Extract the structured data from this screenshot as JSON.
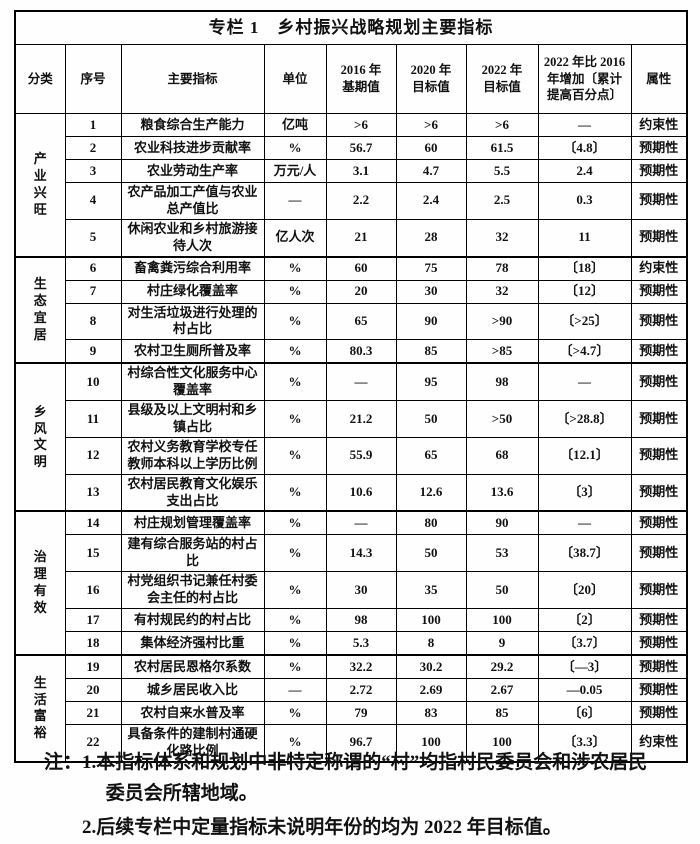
{
  "table": {
    "title": "专栏 1　乡村振兴战略规划主要指标",
    "header": {
      "category": "分类",
      "no": "序号",
      "indicator": "主要指标",
      "unit": "单位",
      "y2016": "2016 年\n基期值",
      "y2020": "2020 年\n目标值",
      "y2022": "2022 年\n目标值",
      "increase": "2022 年比 2016 年增加〔累计提高百分点〕",
      "attr": "属性"
    },
    "groups": [
      {
        "category": "产业兴旺",
        "rows": [
          {
            "no": "1",
            "indicator": "粮食综合生产能力",
            "unit": "亿吨",
            "v2016": ">6",
            "v2020": ">6",
            "v2022": ">6",
            "increase": "—",
            "attr": "约束性"
          },
          {
            "no": "2",
            "indicator": "农业科技进步贡献率",
            "unit": "%",
            "v2016": "56.7",
            "v2020": "60",
            "v2022": "61.5",
            "increase": "〔4.8〕",
            "attr": "预期性"
          },
          {
            "no": "3",
            "indicator": "农业劳动生产率",
            "unit": "万元/人",
            "v2016": "3.1",
            "v2020": "4.7",
            "v2022": "5.5",
            "increase": "2.4",
            "attr": "预期性"
          },
          {
            "no": "4",
            "indicator": "农产品加工产值与农业总产值比",
            "unit": "—",
            "v2016": "2.2",
            "v2020": "2.4",
            "v2022": "2.5",
            "increase": "0.3",
            "attr": "预期性"
          },
          {
            "no": "5",
            "indicator": "休闲农业和乡村旅游接待人次",
            "unit": "亿人次",
            "v2016": "21",
            "v2020": "28",
            "v2022": "32",
            "increase": "11",
            "attr": "预期性"
          }
        ]
      },
      {
        "category": "生态宜居",
        "rows": [
          {
            "no": "6",
            "indicator": "畜禽粪污综合利用率",
            "unit": "%",
            "v2016": "60",
            "v2020": "75",
            "v2022": "78",
            "increase": "〔18〕",
            "attr": "约束性"
          },
          {
            "no": "7",
            "indicator": "村庄绿化覆盖率",
            "unit": "%",
            "v2016": "20",
            "v2020": "30",
            "v2022": "32",
            "increase": "〔12〕",
            "attr": "预期性"
          },
          {
            "no": "8",
            "indicator": "对生活垃圾进行处理的村占比",
            "unit": "%",
            "v2016": "65",
            "v2020": "90",
            "v2022": ">90",
            "increase": "〔>25〕",
            "attr": "预期性"
          },
          {
            "no": "9",
            "indicator": "农村卫生厕所普及率",
            "unit": "%",
            "v2016": "80.3",
            "v2020": "85",
            "v2022": ">85",
            "increase": "〔>4.7〕",
            "attr": "预期性"
          }
        ]
      },
      {
        "category": "乡风文明",
        "rows": [
          {
            "no": "10",
            "indicator": "村综合性文化服务中心覆盖率",
            "unit": "%",
            "v2016": "—",
            "v2020": "95",
            "v2022": "98",
            "increase": "—",
            "attr": "预期性"
          },
          {
            "no": "11",
            "indicator": "县级及以上文明村和乡镇占比",
            "unit": "%",
            "v2016": "21.2",
            "v2020": "50",
            "v2022": ">50",
            "increase": "〔>28.8〕",
            "attr": "预期性"
          },
          {
            "no": "12",
            "indicator": "农村义务教育学校专任教师本科以上学历比例",
            "unit": "%",
            "v2016": "55.9",
            "v2020": "65",
            "v2022": "68",
            "increase": "〔12.1〕",
            "attr": "预期性"
          },
          {
            "no": "13",
            "indicator": "农村居民教育文化娱乐支出占比",
            "unit": "%",
            "v2016": "10.6",
            "v2020": "12.6",
            "v2022": "13.6",
            "increase": "〔3〕",
            "attr": "预期性"
          }
        ]
      },
      {
        "category": "治理有效",
        "rows": [
          {
            "no": "14",
            "indicator": "村庄规划管理覆盖率",
            "unit": "%",
            "v2016": "—",
            "v2020": "80",
            "v2022": "90",
            "increase": "—",
            "attr": "预期性"
          },
          {
            "no": "15",
            "indicator": "建有综合服务站的村占比",
            "unit": "%",
            "v2016": "14.3",
            "v2020": "50",
            "v2022": "53",
            "increase": "〔38.7〕",
            "attr": "预期性"
          },
          {
            "no": "16",
            "indicator": "村党组织书记兼任村委会主任的村占比",
            "unit": "%",
            "v2016": "30",
            "v2020": "35",
            "v2022": "50",
            "increase": "〔20〕",
            "attr": "预期性"
          },
          {
            "no": "17",
            "indicator": "有村规民约的村占比",
            "unit": "%",
            "v2016": "98",
            "v2020": "100",
            "v2022": "100",
            "increase": "〔2〕",
            "attr": "预期性"
          },
          {
            "no": "18",
            "indicator": "集体经济强村比重",
            "unit": "%",
            "v2016": "5.3",
            "v2020": "8",
            "v2022": "9",
            "increase": "〔3.7〕",
            "attr": "预期性"
          }
        ]
      },
      {
        "category": "生活富裕",
        "rows": [
          {
            "no": "19",
            "indicator": "农村居民恩格尔系数",
            "unit": "%",
            "v2016": "32.2",
            "v2020": "30.2",
            "v2022": "29.2",
            "increase": "〔—3〕",
            "attr": "预期性"
          },
          {
            "no": "20",
            "indicator": "城乡居民收入比",
            "unit": "—",
            "v2016": "2.72",
            "v2020": "2.69",
            "v2022": "2.67",
            "increase": "—0.05",
            "attr": "预期性"
          },
          {
            "no": "21",
            "indicator": "农村自来水普及率",
            "unit": "%",
            "v2016": "79",
            "v2020": "83",
            "v2022": "85",
            "increase": "〔6〕",
            "attr": "预期性"
          },
          {
            "no": "22",
            "indicator": "具备条件的建制村通硬化路比例",
            "unit": "%",
            "v2016": "96.7",
            "v2020": "100",
            "v2022": "100",
            "increase": "〔3.3〕",
            "attr": "约束性"
          }
        ]
      }
    ]
  },
  "notes": {
    "label": "注：",
    "items": [
      "1.本指标体系和规划中非特定称谓的“村”均指村民委员会和涉农居民委员会所辖地域。",
      "2.后续专栏中定量指标未说明年份的均为 2022 年目标值。"
    ]
  }
}
